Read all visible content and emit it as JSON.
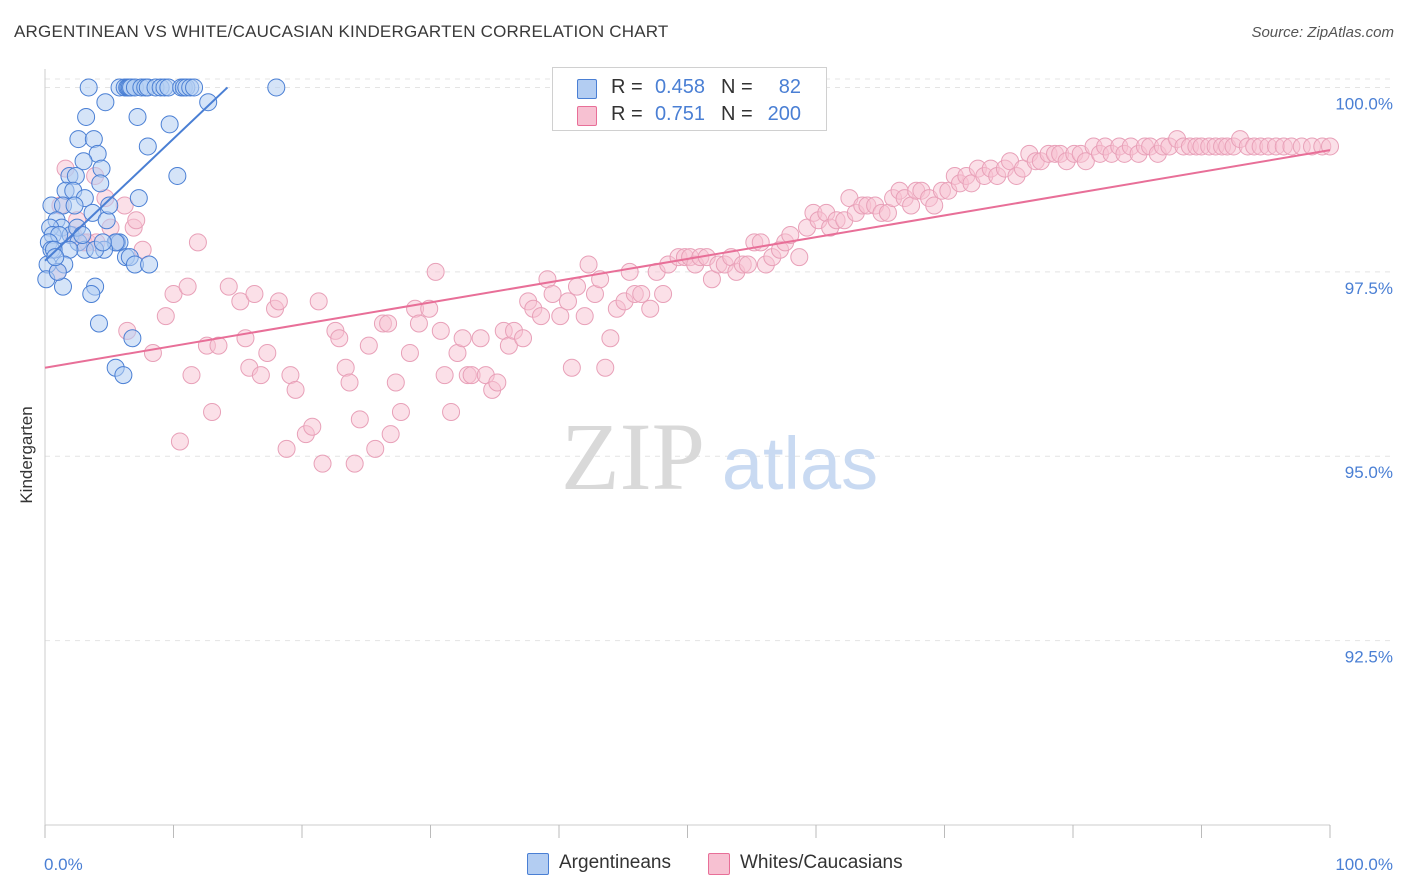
{
  "title": "ARGENTINEAN VS WHITE/CAUCASIAN KINDERGARTEN CORRELATION CHART",
  "source": "Source: ZipAtlas.com",
  "watermark": {
    "zip": "ZIP",
    "atlas": "atlas"
  },
  "legend": {
    "rows": [
      {
        "r_label": "R =",
        "r_value": "0.458",
        "n_label": "N =",
        "n_value": "82",
        "fill": "#b3cdf2",
        "stroke": "#4a7fd4"
      },
      {
        "r_label": "R =",
        "r_value": "0.751",
        "n_label": "N =",
        "n_value": "200",
        "fill": "#f7c1d2",
        "stroke": "#e86f98"
      }
    ]
  },
  "bottom_legend": [
    {
      "label": "Argentineans",
      "fill": "#b3cdf2",
      "stroke": "#4a7fd4"
    },
    {
      "label": "Whites/Caucasians",
      "fill": "#f7c1d2",
      "stroke": "#e86f98"
    }
  ],
  "colors": {
    "blue": "#4a7fd4",
    "pink": "#e86f98",
    "axis_text": "#4a7fd4",
    "grid": "#e4e4e4"
  },
  "chart_data": {
    "type": "scatter",
    "title": "ARGENTINEAN VS WHITE/CAUCASIAN KINDERGARTEN CORRELATION CHART",
    "xlabel": "",
    "ylabel": "Kindergarten",
    "xlim": [
      0,
      100
    ],
    "ylim": [
      90.0,
      100.25
    ],
    "x_tick_labels": [
      "0.0%",
      "100.0%"
    ],
    "y_ticks": [
      92.5,
      95.0,
      97.5,
      100.0
    ],
    "y_tick_labels": [
      "92.5%",
      "95.0%",
      "97.5%",
      "100.0%"
    ],
    "grid": true,
    "series": [
      {
        "name": "Argentineans",
        "color": "#4a7fd4",
        "R": 0.458,
        "N": 82,
        "trend": {
          "x": [
            0,
            14.2
          ],
          "y": [
            97.65,
            100.0
          ]
        },
        "points": [
          [
            3.4,
            100.0
          ],
          [
            5.8,
            100.0
          ],
          [
            6.2,
            100.0
          ],
          [
            6.4,
            100.0
          ],
          [
            6.5,
            100.0
          ],
          [
            6.6,
            100.0
          ],
          [
            6.7,
            100.0
          ],
          [
            7.0,
            100.0
          ],
          [
            7.5,
            100.0
          ],
          [
            7.8,
            100.0
          ],
          [
            8.0,
            100.0
          ],
          [
            8.6,
            100.0
          ],
          [
            9.0,
            100.0
          ],
          [
            9.3,
            100.0
          ],
          [
            9.6,
            100.0
          ],
          [
            10.6,
            100.0
          ],
          [
            10.8,
            100.0
          ],
          [
            11.0,
            100.0
          ],
          [
            11.3,
            100.0
          ],
          [
            11.6,
            100.0
          ],
          [
            18.0,
            100.0
          ],
          [
            12.7,
            99.8
          ],
          [
            4.7,
            99.8
          ],
          [
            3.2,
            99.6
          ],
          [
            7.2,
            99.6
          ],
          [
            2.6,
            99.3
          ],
          [
            3.8,
            99.3
          ],
          [
            4.1,
            99.1
          ],
          [
            8.0,
            99.2
          ],
          [
            3.0,
            99.0
          ],
          [
            4.4,
            98.9
          ],
          [
            1.9,
            98.8
          ],
          [
            2.4,
            98.8
          ],
          [
            4.3,
            98.7
          ],
          [
            10.3,
            98.8
          ],
          [
            1.6,
            98.6
          ],
          [
            2.2,
            98.6
          ],
          [
            3.1,
            98.5
          ],
          [
            7.3,
            98.5
          ],
          [
            0.5,
            98.4
          ],
          [
            1.4,
            98.4
          ],
          [
            2.3,
            98.4
          ],
          [
            3.7,
            98.3
          ],
          [
            4.8,
            98.2
          ],
          [
            0.9,
            98.2
          ],
          [
            1.3,
            98.1
          ],
          [
            2.0,
            98.0
          ],
          [
            0.4,
            98.1
          ],
          [
            0.6,
            98.0
          ],
          [
            1.1,
            98.0
          ],
          [
            2.6,
            97.9
          ],
          [
            5.6,
            97.9
          ],
          [
            5.8,
            97.9
          ],
          [
            5.5,
            97.9
          ],
          [
            3.1,
            97.8
          ],
          [
            4.6,
            97.8
          ],
          [
            6.3,
            97.7
          ],
          [
            6.6,
            97.7
          ],
          [
            7.0,
            97.6
          ],
          [
            0.3,
            97.9
          ],
          [
            0.5,
            97.8
          ],
          [
            0.7,
            97.8
          ],
          [
            1.9,
            97.8
          ],
          [
            3.9,
            97.8
          ],
          [
            4.5,
            97.9
          ],
          [
            0.2,
            97.6
          ],
          [
            1.5,
            97.6
          ],
          [
            8.1,
            97.6
          ],
          [
            0.1,
            97.4
          ],
          [
            1.4,
            97.3
          ],
          [
            3.9,
            97.3
          ],
          [
            3.6,
            97.2
          ],
          [
            4.2,
            96.8
          ],
          [
            6.8,
            96.6
          ],
          [
            5.5,
            96.2
          ],
          [
            6.1,
            96.1
          ],
          [
            1.0,
            97.5
          ],
          [
            2.5,
            98.1
          ],
          [
            5.0,
            98.4
          ],
          [
            0.8,
            97.7
          ],
          [
            2.9,
            98.0
          ],
          [
            9.7,
            99.5
          ]
        ]
      },
      {
        "name": "Whites/Caucasians",
        "color": "#e86f98",
        "R": 0.751,
        "N": 200,
        "trend": {
          "x": [
            0,
            100
          ],
          "y": [
            96.2,
            99.15
          ]
        },
        "points": [
          [
            1.2,
            98.4
          ],
          [
            1.6,
            98.9
          ],
          [
            2.2,
            98.0
          ],
          [
            2.5,
            98.2
          ],
          [
            3.0,
            97.9
          ],
          [
            3.3,
            97.9
          ],
          [
            4.0,
            97.9
          ],
          [
            4.7,
            98.5
          ],
          [
            5.1,
            98.1
          ],
          [
            6.2,
            98.4
          ],
          [
            6.9,
            98.1
          ],
          [
            7.1,
            98.2
          ],
          [
            7.6,
            97.8
          ],
          [
            1.0,
            97.5
          ],
          [
            3.9,
            98.8
          ],
          [
            5.5,
            97.9
          ],
          [
            6.4,
            96.7
          ],
          [
            8.4,
            96.4
          ],
          [
            9.4,
            96.9
          ],
          [
            10.0,
            97.2
          ],
          [
            10.5,
            95.2
          ],
          [
            11.1,
            97.3
          ],
          [
            11.4,
            96.1
          ],
          [
            11.9,
            97.9
          ],
          [
            12.6,
            96.5
          ],
          [
            13.0,
            95.6
          ],
          [
            13.5,
            96.5
          ],
          [
            14.3,
            97.3
          ],
          [
            15.2,
            97.1
          ],
          [
            15.6,
            96.6
          ],
          [
            15.9,
            96.2
          ],
          [
            16.3,
            97.2
          ],
          [
            16.8,
            96.1
          ],
          [
            17.3,
            96.4
          ],
          [
            17.9,
            97.0
          ],
          [
            18.2,
            97.1
          ],
          [
            18.8,
            95.1
          ],
          [
            19.1,
            96.1
          ],
          [
            19.5,
            95.9
          ],
          [
            20.3,
            95.3
          ],
          [
            20.8,
            95.4
          ],
          [
            21.3,
            97.1
          ],
          [
            21.6,
            94.9
          ],
          [
            22.6,
            96.7
          ],
          [
            22.9,
            96.6
          ],
          [
            23.4,
            96.2
          ],
          [
            23.7,
            96.0
          ],
          [
            24.1,
            94.9
          ],
          [
            24.5,
            95.5
          ],
          [
            25.2,
            96.5
          ],
          [
            25.7,
            95.1
          ],
          [
            26.3,
            96.8
          ],
          [
            26.7,
            96.8
          ],
          [
            26.9,
            95.3
          ],
          [
            27.3,
            96.0
          ],
          [
            27.7,
            95.6
          ],
          [
            28.4,
            96.4
          ],
          [
            28.8,
            97.0
          ],
          [
            29.1,
            96.8
          ],
          [
            29.9,
            97.0
          ],
          [
            30.4,
            97.5
          ],
          [
            30.8,
            96.7
          ],
          [
            31.1,
            96.1
          ],
          [
            31.6,
            95.6
          ],
          [
            32.1,
            96.4
          ],
          [
            32.5,
            96.6
          ],
          [
            32.9,
            96.1
          ],
          [
            33.2,
            96.1
          ],
          [
            33.9,
            96.6
          ],
          [
            34.3,
            96.1
          ],
          [
            34.8,
            95.9
          ],
          [
            35.2,
            96.0
          ],
          [
            35.7,
            96.7
          ],
          [
            36.1,
            96.5
          ],
          [
            36.5,
            96.7
          ],
          [
            37.2,
            96.6
          ],
          [
            37.6,
            97.1
          ],
          [
            38.0,
            97.0
          ],
          [
            38.6,
            96.9
          ],
          [
            39.1,
            97.4
          ],
          [
            39.5,
            97.2
          ],
          [
            40.1,
            96.9
          ],
          [
            40.7,
            97.1
          ],
          [
            41.0,
            96.2
          ],
          [
            41.4,
            97.3
          ],
          [
            42.0,
            96.9
          ],
          [
            42.3,
            97.6
          ],
          [
            42.8,
            97.2
          ],
          [
            43.2,
            97.4
          ],
          [
            43.6,
            96.2
          ],
          [
            44.0,
            96.6
          ],
          [
            44.5,
            97.0
          ],
          [
            45.1,
            97.1
          ],
          [
            45.5,
            97.5
          ],
          [
            45.9,
            97.2
          ],
          [
            46.4,
            97.2
          ],
          [
            47.1,
            97.0
          ],
          [
            47.6,
            97.5
          ],
          [
            48.1,
            97.2
          ],
          [
            48.5,
            97.6
          ],
          [
            49.3,
            97.7
          ],
          [
            49.8,
            97.7
          ],
          [
            50.2,
            97.7
          ],
          [
            50.6,
            97.6
          ],
          [
            51.0,
            97.7
          ],
          [
            51.5,
            97.7
          ],
          [
            51.9,
            97.4
          ],
          [
            52.4,
            97.6
          ],
          [
            52.9,
            97.6
          ],
          [
            53.4,
            97.7
          ],
          [
            53.8,
            97.5
          ],
          [
            54.3,
            97.6
          ],
          [
            54.7,
            97.6
          ],
          [
            55.2,
            97.9
          ],
          [
            55.7,
            97.9
          ],
          [
            56.1,
            97.6
          ],
          [
            56.6,
            97.7
          ],
          [
            57.2,
            97.8
          ],
          [
            57.6,
            97.9
          ],
          [
            58.0,
            98.0
          ],
          [
            58.7,
            97.7
          ],
          [
            59.3,
            98.1
          ],
          [
            59.8,
            98.3
          ],
          [
            60.2,
            98.2
          ],
          [
            60.8,
            98.3
          ],
          [
            61.1,
            98.1
          ],
          [
            61.6,
            98.2
          ],
          [
            62.2,
            98.2
          ],
          [
            62.6,
            98.5
          ],
          [
            63.1,
            98.3
          ],
          [
            63.6,
            98.4
          ],
          [
            64.0,
            98.4
          ],
          [
            64.6,
            98.4
          ],
          [
            65.1,
            98.3
          ],
          [
            65.6,
            98.3
          ],
          [
            66.0,
            98.5
          ],
          [
            66.5,
            98.6
          ],
          [
            66.9,
            98.5
          ],
          [
            67.4,
            98.4
          ],
          [
            67.8,
            98.6
          ],
          [
            68.2,
            98.6
          ],
          [
            68.8,
            98.5
          ],
          [
            69.2,
            98.4
          ],
          [
            69.8,
            98.6
          ],
          [
            70.3,
            98.6
          ],
          [
            70.8,
            98.8
          ],
          [
            71.2,
            98.7
          ],
          [
            71.7,
            98.8
          ],
          [
            72.1,
            98.7
          ],
          [
            72.6,
            98.9
          ],
          [
            73.1,
            98.8
          ],
          [
            73.6,
            98.9
          ],
          [
            74.1,
            98.8
          ],
          [
            74.7,
            98.9
          ],
          [
            75.1,
            99.0
          ],
          [
            75.6,
            98.8
          ],
          [
            76.1,
            98.9
          ],
          [
            76.6,
            99.1
          ],
          [
            77.1,
            99.0
          ],
          [
            77.5,
            99.0
          ],
          [
            78.1,
            99.1
          ],
          [
            78.6,
            99.1
          ],
          [
            79.0,
            99.1
          ],
          [
            79.5,
            99.0
          ],
          [
            80.1,
            99.1
          ],
          [
            80.6,
            99.1
          ],
          [
            81.0,
            99.0
          ],
          [
            81.6,
            99.2
          ],
          [
            82.1,
            99.1
          ],
          [
            82.5,
            99.2
          ],
          [
            83.0,
            99.1
          ],
          [
            83.6,
            99.2
          ],
          [
            84.0,
            99.1
          ],
          [
            84.5,
            99.2
          ],
          [
            85.1,
            99.1
          ],
          [
            85.6,
            99.2
          ],
          [
            86.0,
            99.2
          ],
          [
            86.6,
            99.1
          ],
          [
            87.0,
            99.2
          ],
          [
            87.5,
            99.2
          ],
          [
            88.1,
            99.3
          ],
          [
            88.6,
            99.2
          ],
          [
            89.1,
            99.2
          ],
          [
            89.6,
            99.2
          ],
          [
            90.0,
            99.2
          ],
          [
            90.6,
            99.2
          ],
          [
            91.1,
            99.2
          ],
          [
            91.6,
            99.2
          ],
          [
            92.0,
            99.2
          ],
          [
            92.5,
            99.2
          ],
          [
            93.0,
            99.3
          ],
          [
            93.6,
            99.2
          ],
          [
            94.1,
            99.2
          ],
          [
            94.6,
            99.2
          ],
          [
            95.2,
            99.2
          ],
          [
            95.8,
            99.2
          ],
          [
            96.4,
            99.2
          ],
          [
            97.0,
            99.2
          ],
          [
            97.8,
            99.2
          ],
          [
            98.6,
            99.2
          ],
          [
            99.4,
            99.2
          ],
          [
            100.0,
            99.2
          ]
        ]
      }
    ]
  }
}
